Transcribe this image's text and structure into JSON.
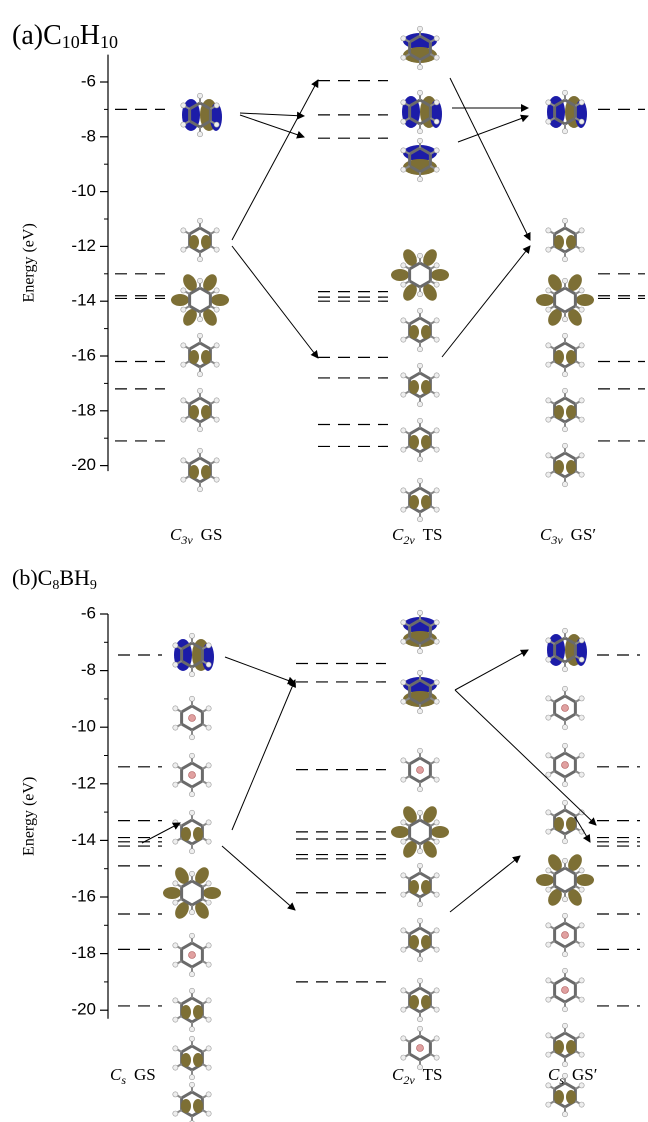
{
  "chart_data": [
    {
      "type": "levels",
      "title_parts": [
        "(a)C",
        "10",
        "H",
        "10"
      ],
      "ylabel": "Energy (eV)",
      "ylim": [
        -20.2,
        -5
      ],
      "yticks": [
        -6,
        -8,
        -10,
        -12,
        -14,
        -16,
        -18,
        -20
      ],
      "columns": [
        {
          "label": [
            "C",
            "3v",
            "GS"
          ],
          "levels": [
            -7.0,
            -13.0,
            -13.8,
            -13.9,
            -16.2,
            -17.2,
            -19.1
          ]
        },
        {
          "label": [
            "C",
            "2v",
            "TS"
          ],
          "levels": [
            -5.95,
            -7.2,
            -8.05,
            -13.65,
            -13.85,
            -14.0,
            -16.05,
            -16.8,
            -18.5,
            -19.3
          ]
        },
        {
          "label": [
            "C",
            "3v",
            "GS′"
          ],
          "levels": [
            -7.0,
            -13.0,
            -13.8,
            -13.9,
            -16.2,
            -17.2,
            -19.1
          ]
        }
      ]
    },
    {
      "type": "levels",
      "title_parts": [
        "(b)C",
        "8",
        "BH",
        "9"
      ],
      "ylabel": "Energy (eV)",
      "ylim": [
        -20.3,
        -6
      ],
      "yticks": [
        -6,
        -8,
        -10,
        -12,
        -14,
        -16,
        -18,
        -20
      ],
      "columns": [
        {
          "label": [
            "C",
            "s",
            "GS"
          ],
          "levels": [
            -7.45,
            -11.4,
            -13.3,
            -13.9,
            -14.05,
            -14.2,
            -14.9,
            -16.6,
            -17.85,
            -19.85
          ]
        },
        {
          "label": [
            "C",
            "2v",
            "TS"
          ],
          "levels": [
            -7.75,
            -8.4,
            -11.5,
            -13.7,
            -13.95,
            -14.5,
            -14.65,
            -15.85,
            -19.0
          ]
        },
        {
          "label": [
            "C",
            "s",
            "GS′"
          ],
          "levels": [
            -7.45,
            -11.4,
            -13.3,
            -13.9,
            -14.05,
            -14.2,
            -14.9,
            -16.6,
            -17.85,
            -19.85
          ]
        }
      ]
    }
  ]
}
